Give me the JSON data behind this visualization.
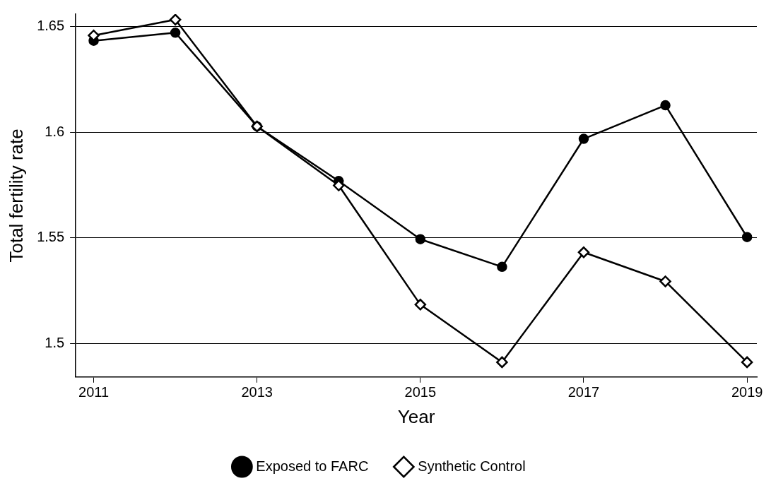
{
  "chart_data": {
    "type": "line",
    "xlabel": "Year",
    "ylabel": "Total fertility rate",
    "x": [
      2011,
      2012,
      2013,
      2014,
      2015,
      2016,
      2017,
      2018,
      2019
    ],
    "series": [
      {
        "name": "Exposed to FARC",
        "color": "#000000",
        "marker": "circle",
        "values": [
          1.6434,
          1.6472,
          1.6028,
          1.5769,
          1.5493,
          1.5362,
          1.5969,
          1.6128,
          1.5503
        ]
      },
      {
        "name": "Synthetic Control",
        "color": "#000000",
        "marker": "diamond",
        "values": [
          1.6459,
          1.6534,
          1.6028,
          1.5748,
          1.5183,
          1.491,
          1.5431,
          1.5293,
          1.491
        ]
      }
    ],
    "xlim": [
      2010.78,
      2019.12
    ],
    "xticks": [
      2011,
      2013,
      2015,
      2017,
      2019
    ],
    "ylim": [
      1.484,
      1.656
    ],
    "yticks": [
      1.5,
      1.55,
      1.6,
      1.65
    ],
    "grid": "y",
    "legend": "bottom",
    "line_style": "solid"
  }
}
